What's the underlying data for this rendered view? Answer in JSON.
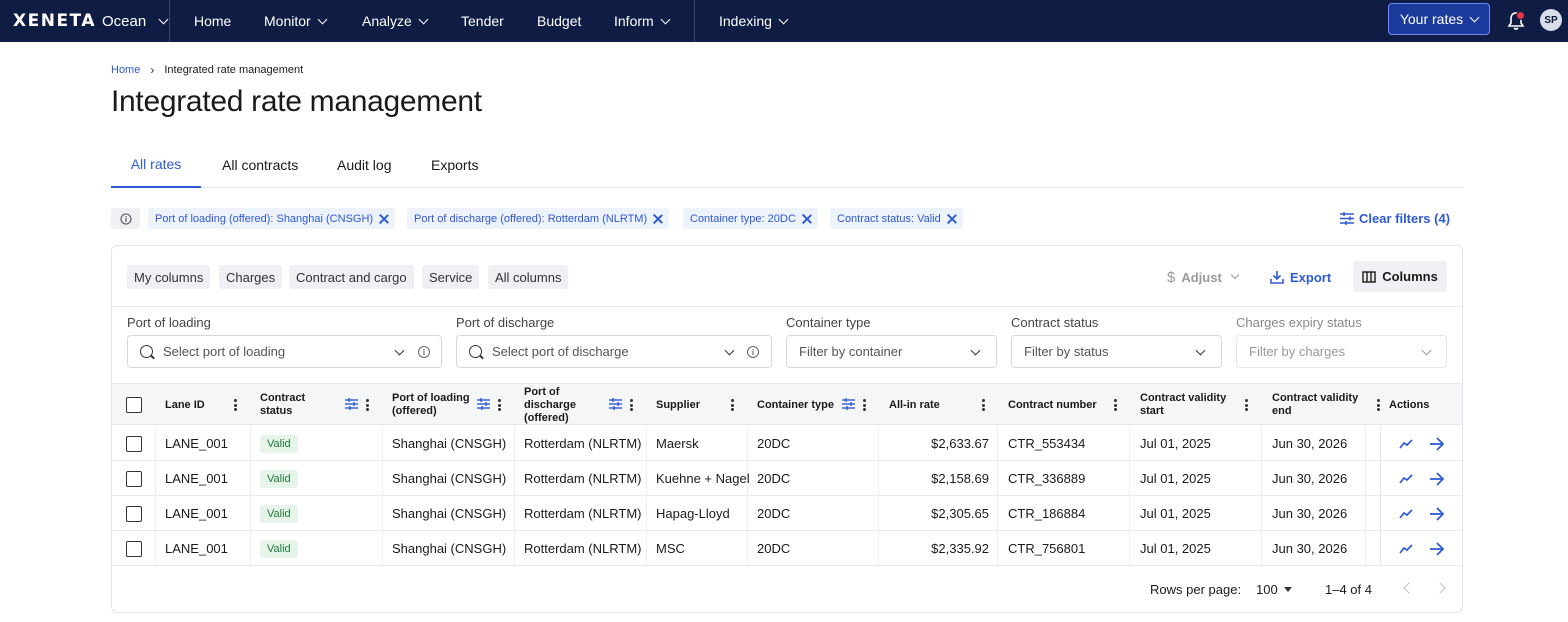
{
  "nav": {
    "brand": "XENETA",
    "product": "Ocean",
    "items": [
      "Home",
      "Monitor",
      "Analyze",
      "Tender",
      "Budget",
      "Inform",
      "Indexing"
    ],
    "your_rates": "Your rates",
    "avatar": "SP"
  },
  "breadcrumb": {
    "home": "Home",
    "current": "Integrated rate management"
  },
  "page_title": "Integrated rate management",
  "tabs": [
    "All rates",
    "All contracts",
    "Audit log",
    "Exports"
  ],
  "filters_applied": [
    "Port of loading (offered): Shanghai (CNSGH)",
    "Port of discharge (offered): Rotterdam (NLRTM)",
    "Container type: 20DC",
    "Contract status: Valid"
  ],
  "clear_filters": "Clear filters (4)",
  "column_groups": [
    "My columns",
    "Charges",
    "Contract and cargo",
    "Service",
    "All columns"
  ],
  "toolbar": {
    "adjust": "Adjust",
    "export": "Export",
    "columns": "Columns"
  },
  "filter_fields": [
    {
      "label": "Port of loading",
      "placeholder": "Select port of loading"
    },
    {
      "label": "Port of discharge",
      "placeholder": "Select port of discharge"
    },
    {
      "label": "Container type",
      "placeholder": "Filter by container"
    },
    {
      "label": "Contract status",
      "placeholder": "Filter by status"
    },
    {
      "label": "Charges expiry status",
      "placeholder": "Filter by charges"
    }
  ],
  "table": {
    "headers": {
      "lane_id": "Lane ID",
      "contract_status": "Contract status",
      "pol": "Port of loading (offered)",
      "pod": "Port of discharge (offered)",
      "supplier": "Supplier",
      "container": "Container type",
      "all_in": "All-in rate",
      "contract_no": "Contract number",
      "valid_start": "Contract validity start",
      "valid_end": "Contract validity end",
      "actions": "Actions"
    },
    "rows": [
      {
        "lane": "LANE_001",
        "status": "Valid",
        "pol": "Shanghai (CNSGH)",
        "pod": "Rotterdam (NLRTM)",
        "supplier": "Maersk",
        "container": "20DC",
        "rate": "$2,633.67",
        "contract": "CTR_553434",
        "start": "Jul 01, 2025",
        "end": "Jun 30, 2026"
      },
      {
        "lane": "LANE_001",
        "status": "Valid",
        "pol": "Shanghai (CNSGH)",
        "pod": "Rotterdam (NLRTM)",
        "supplier": "Kuehne + Nagel",
        "container": "20DC",
        "rate": "$2,158.69",
        "contract": "CTR_336889",
        "start": "Jul 01, 2025",
        "end": "Jun 30, 2026"
      },
      {
        "lane": "LANE_001",
        "status": "Valid",
        "pol": "Shanghai (CNSGH)",
        "pod": "Rotterdam (NLRTM)",
        "supplier": "Hapag-Lloyd",
        "container": "20DC",
        "rate": "$2,305.65",
        "contract": "CTR_186884",
        "start": "Jul 01, 2025",
        "end": "Jun 30, 2026"
      },
      {
        "lane": "LANE_001",
        "status": "Valid",
        "pol": "Shanghai (CNSGH)",
        "pod": "Rotterdam (NLRTM)",
        "supplier": "MSC",
        "container": "20DC",
        "rate": "$2,335.92",
        "contract": "CTR_756801",
        "start": "Jul 01, 2025",
        "end": "Jun 30, 2026"
      }
    ]
  },
  "pagination": {
    "rows_label": "Rows per page:",
    "rows_value": "100",
    "range": "1–4 of 4"
  },
  "colors": {
    "nav_bg": "#0f1c44",
    "accent": "#2d5bd3",
    "valid_badge": "#1f7a3c"
  }
}
